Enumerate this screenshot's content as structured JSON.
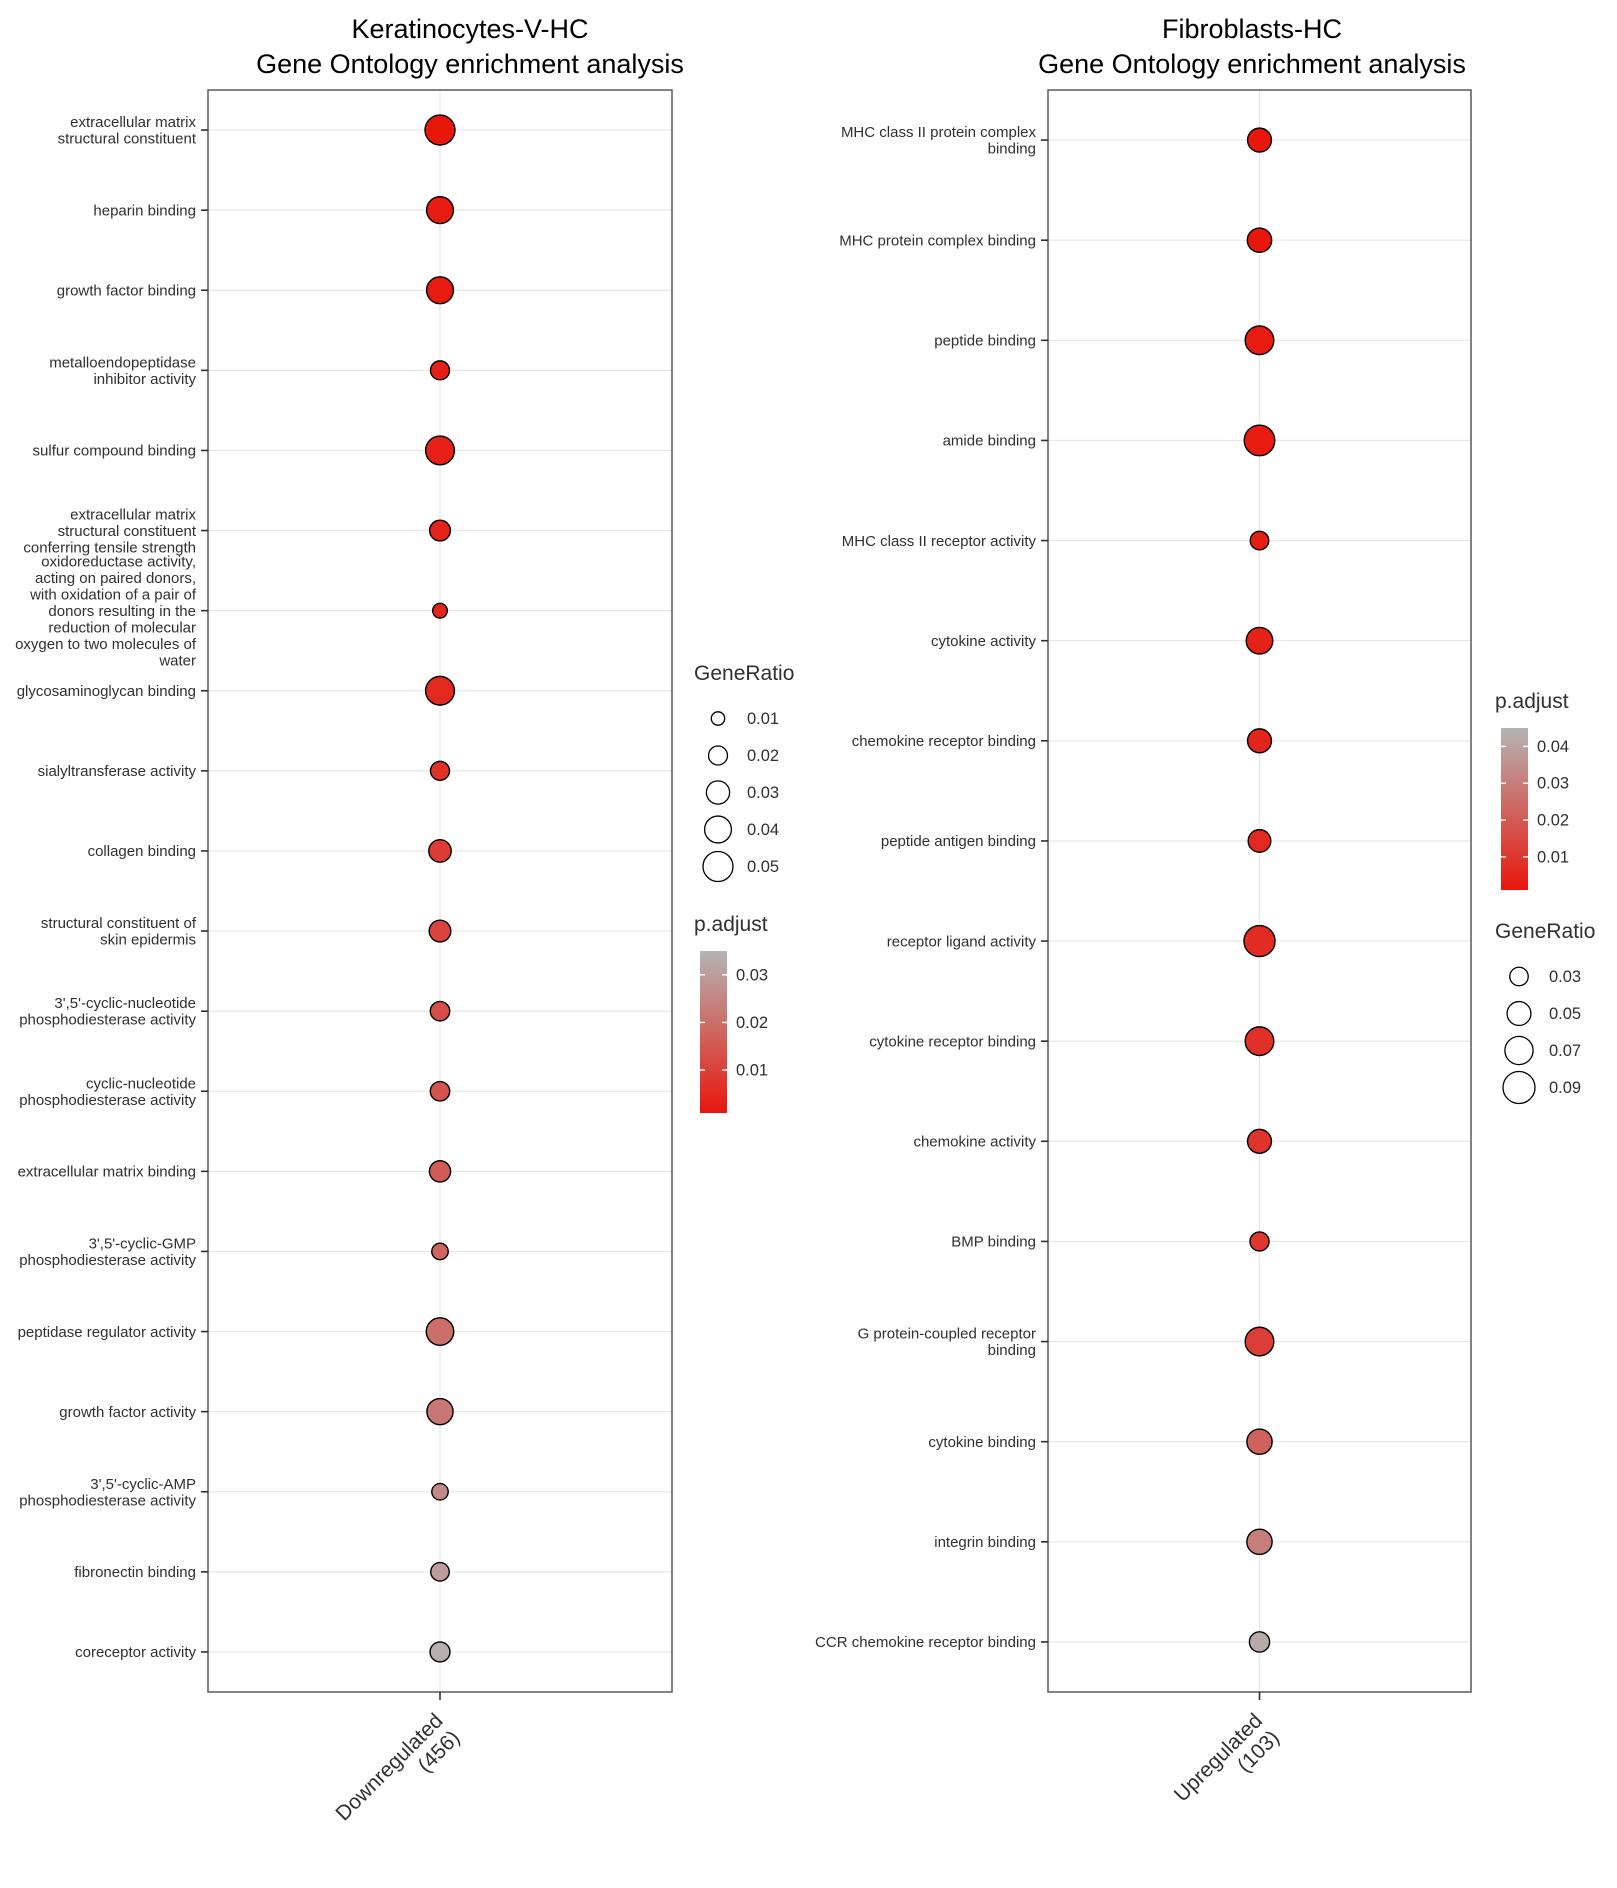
{
  "figure": {
    "background": "#ffffff"
  },
  "chart_data": [
    {
      "type": "scatter",
      "variant": "go-enrichment-dotplot",
      "title": "Keratinocytes-V-HC",
      "subtitle": "Gene Ontology enrichment analysis",
      "x_categories": [
        "Downregulated (456)"
      ],
      "x_tick_lines": [
        [
          "Downregulated",
          "(456)"
        ]
      ],
      "legend_order": [
        "size",
        "color"
      ],
      "size_legend": {
        "title": "GeneRatio",
        "values": [
          "0.01",
          "0.02",
          "0.03",
          "0.04",
          "0.05"
        ]
      },
      "color_legend": {
        "title": "p.adjust",
        "ticks": [
          "0.03",
          "0.02",
          "0.01"
        ]
      },
      "color_scale": {
        "low_color": "#e8170c",
        "high_color": "#b4b4b4",
        "domain": [
          0.001,
          0.035
        ]
      },
      "size_scale": {
        "domain_max": 0.05
      },
      "rows": [
        {
          "label": "extracellular matrix structural constituent",
          "label_lines": [
            "extracellular matrix",
            "structural constituent"
          ],
          "gene_ratio": 0.05,
          "p_adjust": 0.001
        },
        {
          "label": "heparin binding",
          "label_lines": [
            "heparin binding"
          ],
          "gene_ratio": 0.04,
          "p_adjust": 0.002
        },
        {
          "label": "growth factor binding",
          "label_lines": [
            "growth factor binding"
          ],
          "gene_ratio": 0.04,
          "p_adjust": 0.002
        },
        {
          "label": "metalloendopeptidase inhibitor activity",
          "label_lines": [
            "metalloendopeptidase",
            "inhibitor activity"
          ],
          "gene_ratio": 0.02,
          "p_adjust": 0.003
        },
        {
          "label": "sulfur compound binding",
          "label_lines": [
            "sulfur compound binding"
          ],
          "gene_ratio": 0.046,
          "p_adjust": 0.003
        },
        {
          "label": "extracellular matrix structural constituent conferring tensile strength",
          "label_lines": [
            "extracellular matrix",
            "structural constituent",
            "conferring tensile strength"
          ],
          "gene_ratio": 0.024,
          "p_adjust": 0.004
        },
        {
          "label": "oxidoreductase activity, acting on paired donors, with oxidation of a pair of donors resulting in the reduction of molecular oxygen to two molecules of water",
          "label_lines": [
            "oxidoreductase activity,",
            "acting on paired donors,",
            "with oxidation of a pair of",
            "donors resulting in the",
            "reduction of molecular",
            "oxygen to two molecules of",
            "water"
          ],
          "gene_ratio": 0.012,
          "p_adjust": 0.004
        },
        {
          "label": "glycosaminoglycan binding",
          "label_lines": [
            "glycosaminoglycan binding"
          ],
          "gene_ratio": 0.046,
          "p_adjust": 0.005
        },
        {
          "label": "sialyltransferase activity",
          "label_lines": [
            "sialyltransferase activity"
          ],
          "gene_ratio": 0.02,
          "p_adjust": 0.007
        },
        {
          "label": "collagen binding",
          "label_lines": [
            "collagen binding"
          ],
          "gene_ratio": 0.028,
          "p_adjust": 0.009
        },
        {
          "label": "structural constituent of skin epidermis",
          "label_lines": [
            "structural constituent of",
            "skin epidermis"
          ],
          "gene_ratio": 0.026,
          "p_adjust": 0.011
        },
        {
          "label": "3',5'-cyclic-nucleotide phosphodiesterase activity",
          "label_lines": [
            "3',5'-cyclic-nucleotide",
            "phosphodiesterase activity"
          ],
          "gene_ratio": 0.021,
          "p_adjust": 0.013
        },
        {
          "label": "cyclic-nucleotide phosphodiesterase activity",
          "label_lines": [
            "cyclic-nucleotide",
            "phosphodiesterase activity"
          ],
          "gene_ratio": 0.021,
          "p_adjust": 0.014
        },
        {
          "label": "extracellular matrix binding",
          "label_lines": [
            "extracellular matrix binding"
          ],
          "gene_ratio": 0.025,
          "p_adjust": 0.016
        },
        {
          "label": "3',5'-cyclic-GMP phosphodiesterase activity",
          "label_lines": [
            "3',5'-cyclic-GMP",
            "phosphodiesterase activity"
          ],
          "gene_ratio": 0.015,
          "p_adjust": 0.018
        },
        {
          "label": "peptidase regulator activity",
          "label_lines": [
            "peptidase regulator activity"
          ],
          "gene_ratio": 0.042,
          "p_adjust": 0.02
        },
        {
          "label": "growth factor activity",
          "label_lines": [
            "growth factor activity"
          ],
          "gene_ratio": 0.038,
          "p_adjust": 0.022
        },
        {
          "label": "3',5'-cyclic-AMP phosphodiesterase activity",
          "label_lines": [
            "3',5'-cyclic-AMP",
            "phosphodiesterase activity"
          ],
          "gene_ratio": 0.015,
          "p_adjust": 0.026
        },
        {
          "label": "fibronectin binding",
          "label_lines": [
            "fibronectin binding"
          ],
          "gene_ratio": 0.019,
          "p_adjust": 0.03
        },
        {
          "label": "coreceptor activity",
          "label_lines": [
            "coreceptor activity"
          ],
          "gene_ratio": 0.022,
          "p_adjust": 0.034
        }
      ]
    },
    {
      "type": "scatter",
      "variant": "go-enrichment-dotplot",
      "title": "Fibroblasts-HC",
      "subtitle": "Gene Ontology enrichment analysis",
      "x_categories": [
        "Upregulated (103)"
      ],
      "x_tick_lines": [
        [
          "Upregulated",
          "(103)"
        ]
      ],
      "legend_order": [
        "color",
        "size"
      ],
      "size_legend": {
        "title": "GeneRatio",
        "values": [
          "0.03",
          "0.05",
          "0.07",
          "0.09"
        ]
      },
      "color_legend": {
        "title": "p.adjust",
        "ticks": [
          "0.04",
          "0.03",
          "0.02",
          "0.01"
        ]
      },
      "color_scale": {
        "low_color": "#e8170c",
        "high_color": "#b4b4b4",
        "domain": [
          0.001,
          0.045
        ]
      },
      "size_scale": {
        "domain_max": 0.09
      },
      "rows": [
        {
          "label": "MHC class II protein complex binding",
          "label_lines": [
            "MHC class II protein complex",
            "binding"
          ],
          "gene_ratio": 0.05,
          "p_adjust": 0.001
        },
        {
          "label": "MHC protein complex binding",
          "label_lines": [
            "MHC protein complex binding"
          ],
          "gene_ratio": 0.052,
          "p_adjust": 0.001
        },
        {
          "label": "peptide binding",
          "label_lines": [
            "peptide binding"
          ],
          "gene_ratio": 0.072,
          "p_adjust": 0.002
        },
        {
          "label": "amide binding",
          "label_lines": [
            "amide binding"
          ],
          "gene_ratio": 0.082,
          "p_adjust": 0.002
        },
        {
          "label": "MHC class II receptor activity",
          "label_lines": [
            "MHC class II receptor activity"
          ],
          "gene_ratio": 0.03,
          "p_adjust": 0.003
        },
        {
          "label": "cytokine activity",
          "label_lines": [
            "cytokine activity"
          ],
          "gene_ratio": 0.062,
          "p_adjust": 0.004
        },
        {
          "label": "chemokine receptor binding",
          "label_lines": [
            "chemokine receptor binding"
          ],
          "gene_ratio": 0.05,
          "p_adjust": 0.005
        },
        {
          "label": "peptide antigen binding",
          "label_lines": [
            "peptide antigen binding"
          ],
          "gene_ratio": 0.045,
          "p_adjust": 0.006
        },
        {
          "label": "receptor ligand activity",
          "label_lines": [
            "receptor ligand activity"
          ],
          "gene_ratio": 0.085,
          "p_adjust": 0.007
        },
        {
          "label": "cytokine receptor binding",
          "label_lines": [
            "cytokine receptor binding"
          ],
          "gene_ratio": 0.072,
          "p_adjust": 0.008
        },
        {
          "label": "chemokine activity",
          "label_lines": [
            "chemokine activity"
          ],
          "gene_ratio": 0.05,
          "p_adjust": 0.009
        },
        {
          "label": "BMP binding",
          "label_lines": [
            "BMP binding"
          ],
          "gene_ratio": 0.032,
          "p_adjust": 0.01
        },
        {
          "label": "G protein-coupled receptor binding",
          "label_lines": [
            "G protein-coupled receptor",
            "binding"
          ],
          "gene_ratio": 0.072,
          "p_adjust": 0.012
        },
        {
          "label": "cytokine binding",
          "label_lines": [
            "cytokine binding"
          ],
          "gene_ratio": 0.056,
          "p_adjust": 0.022
        },
        {
          "label": "integrin binding",
          "label_lines": [
            "integrin binding"
          ],
          "gene_ratio": 0.056,
          "p_adjust": 0.03
        },
        {
          "label": "CCR chemokine receptor binding",
          "label_lines": [
            "CCR chemokine receptor binding"
          ],
          "gene_ratio": 0.036,
          "p_adjust": 0.042
        }
      ]
    }
  ]
}
